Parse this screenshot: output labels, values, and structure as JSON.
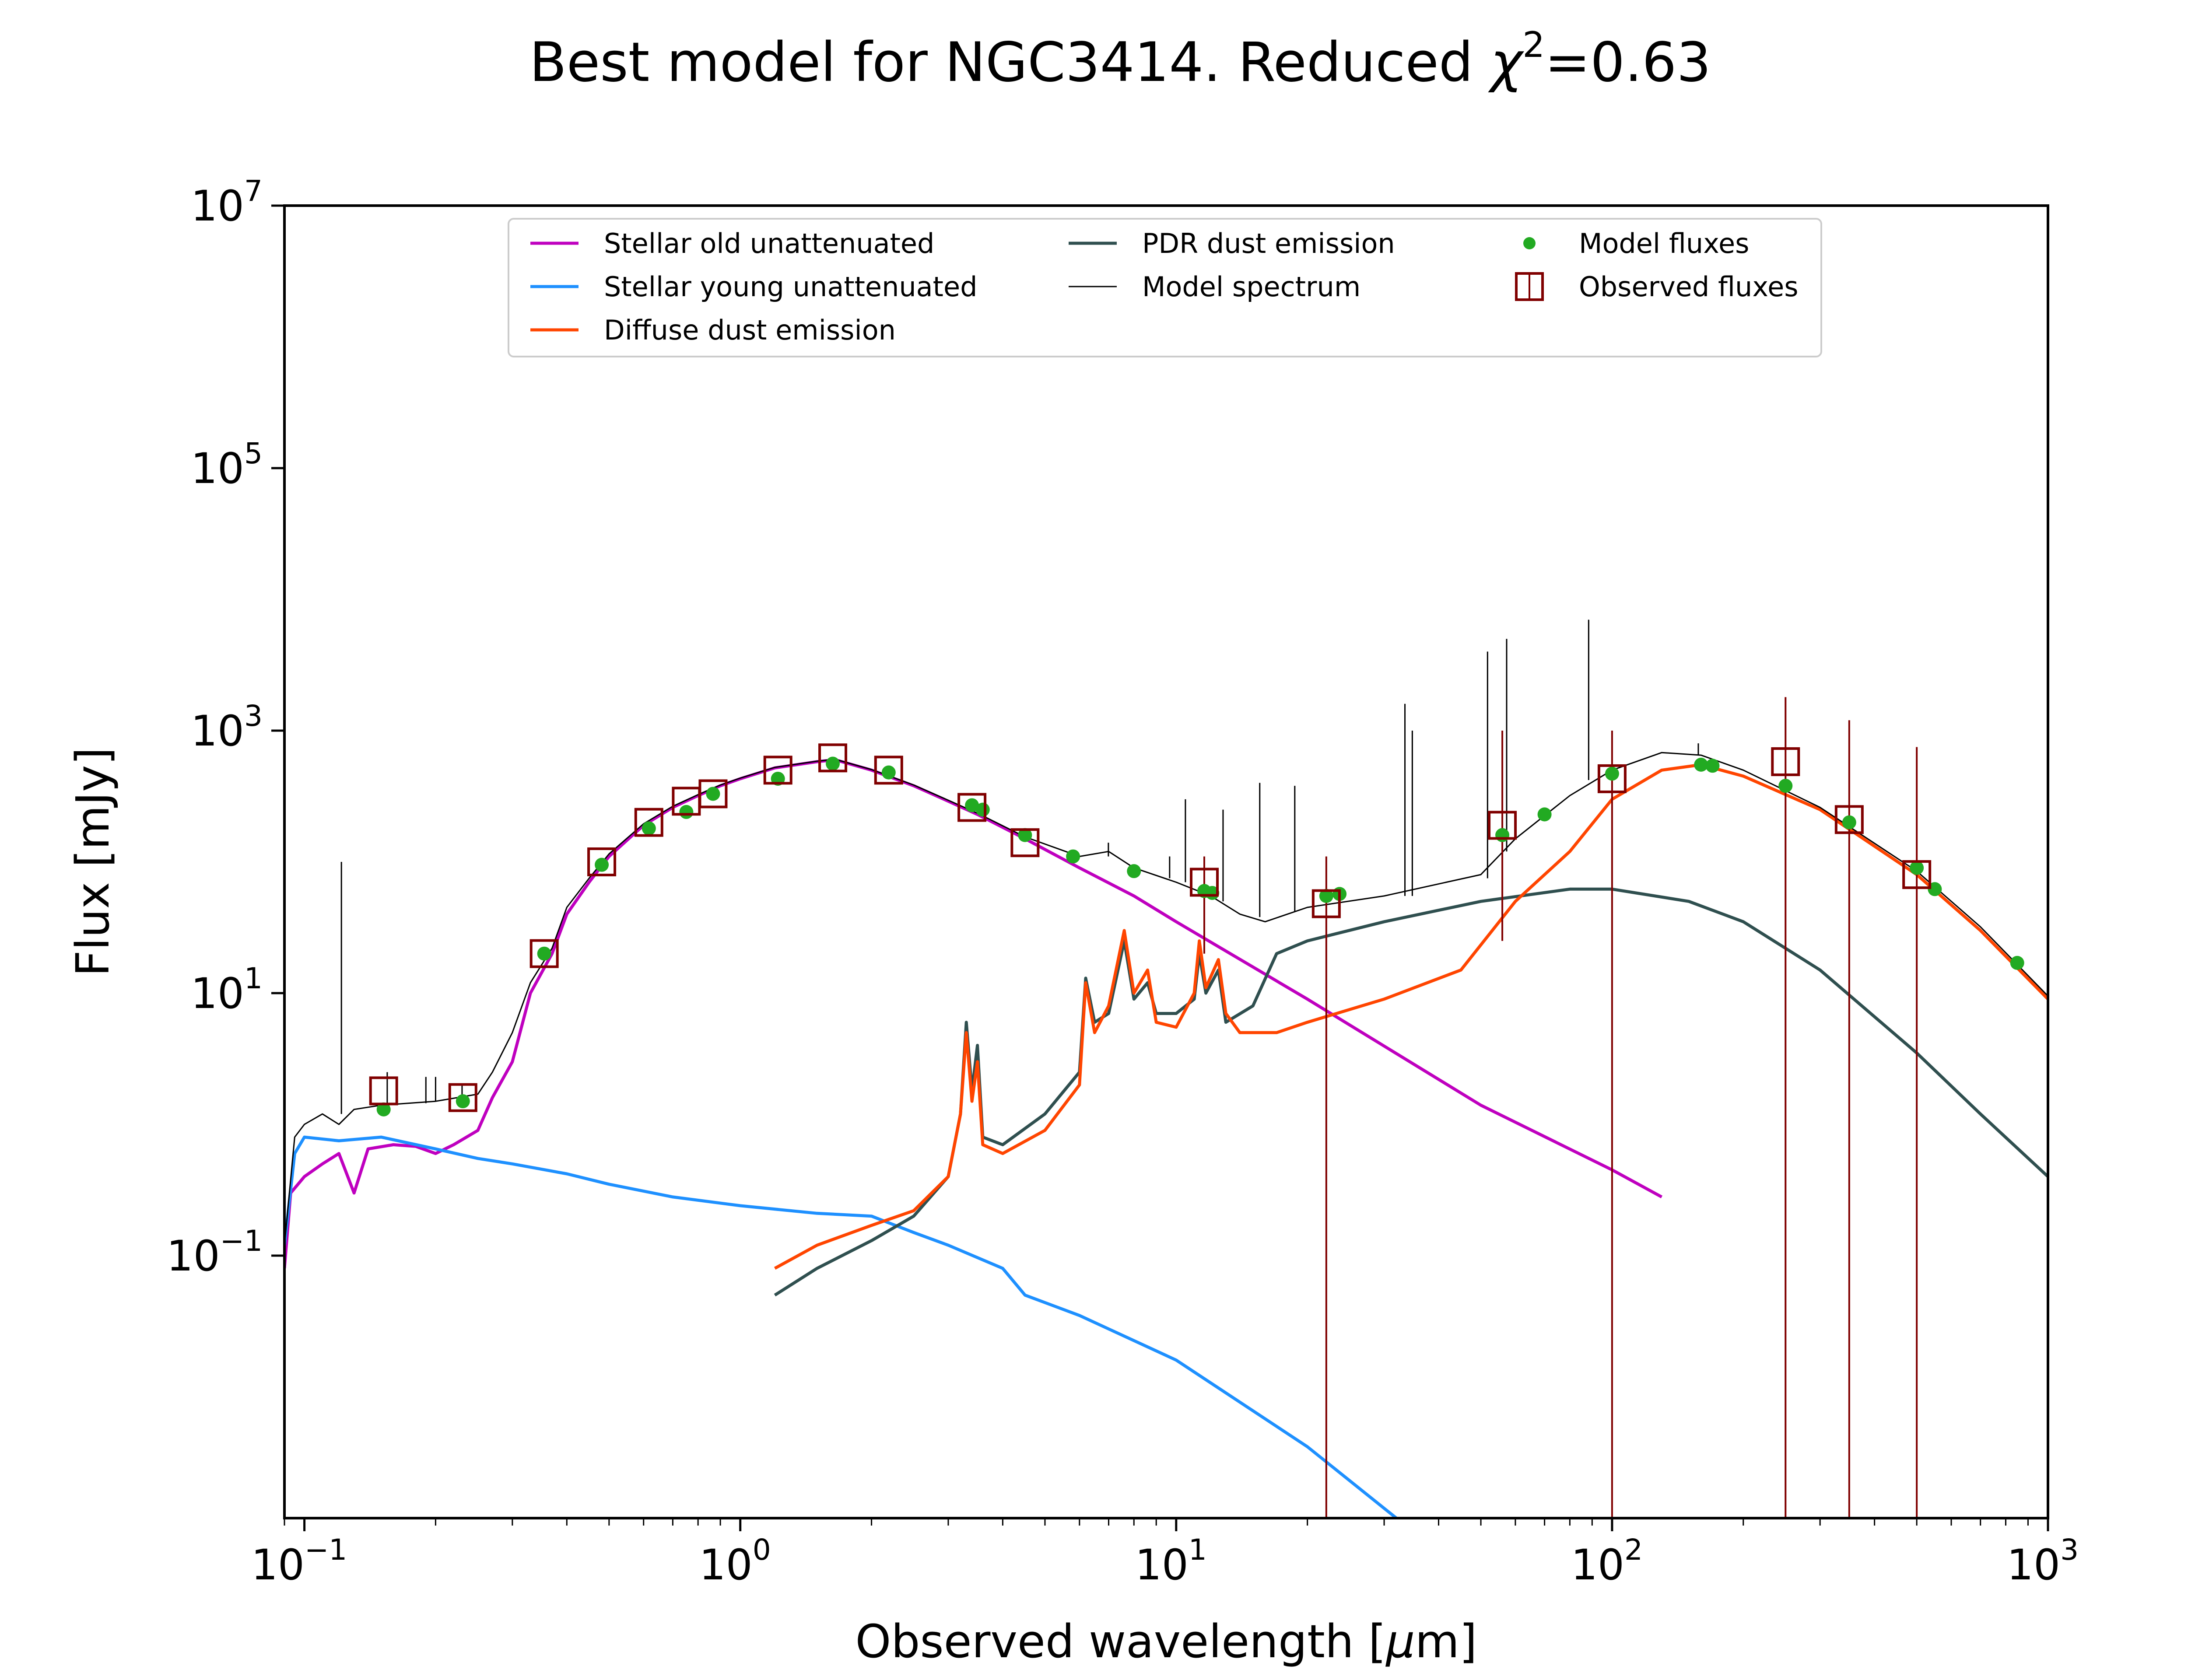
{
  "chart_data": {
    "type": "line",
    "title_prefix": "Best model for NGC3414. Reduced ",
    "title_symbol": "χ",
    "title_superscript": "2",
    "title_suffix": "=0.63",
    "xlabel_prefix": "Observed wavelength [",
    "xlabel_mu": "μ",
    "xlabel_suffix": "m]",
    "ylabel": "Flux [mJy]",
    "xscale": "log",
    "yscale": "log",
    "xlim": [
      0.09,
      1000
    ],
    "ylim": [
      0.001,
      10000000
    ],
    "x_ticks": [
      {
        "value": 0.1,
        "base": "10",
        "exp": "−1"
      },
      {
        "value": 1,
        "base": "10",
        "exp": "0"
      },
      {
        "value": 10,
        "base": "10",
        "exp": "1"
      },
      {
        "value": 100,
        "base": "10",
        "exp": "2"
      },
      {
        "value": 1000,
        "base": "10",
        "exp": "3"
      }
    ],
    "y_ticks": [
      {
        "value": 0.1,
        "base": "10",
        "exp": "−1"
      },
      {
        "value": 10,
        "base": "10",
        "exp": "1"
      },
      {
        "value": 1000,
        "base": "10",
        "exp": "3"
      },
      {
        "value": 100000,
        "base": "10",
        "exp": "5"
      },
      {
        "value": 10000000,
        "base": "10",
        "exp": "7"
      }
    ],
    "legend_position": "upper center",
    "legend": [
      {
        "label": "Stellar old unattenuated",
        "kind": "line",
        "color": "#bf00bf",
        "width": 7
      },
      {
        "label": "Stellar young unattenuated",
        "kind": "line",
        "color": "#1e90ff",
        "width": 7
      },
      {
        "label": "Diffuse dust emission",
        "kind": "line",
        "color": "#ff4500",
        "width": 7
      },
      {
        "label": "PDR dust emission",
        "kind": "line",
        "color": "#2f4f4f",
        "width": 7
      },
      {
        "label": "Model spectrum",
        "kind": "line",
        "color": "#000000",
        "width": 3
      },
      {
        "label": "Model fluxes",
        "kind": "dot",
        "color": "#22aa22"
      },
      {
        "label": "Observed fluxes",
        "kind": "square",
        "color": "#800000"
      }
    ],
    "series": [
      {
        "name": "Stellar old unattenuated",
        "color": "#bf00bf",
        "width": 7,
        "points": [
          [
            0.09,
            0.08
          ],
          [
            0.093,
            0.3
          ],
          [
            0.1,
            0.4
          ],
          [
            0.11,
            0.5
          ],
          [
            0.12,
            0.6
          ],
          [
            0.13,
            0.3
          ],
          [
            0.14,
            0.65
          ],
          [
            0.16,
            0.7
          ],
          [
            0.18,
            0.68
          ],
          [
            0.2,
            0.6
          ],
          [
            0.22,
            0.7
          ],
          [
            0.25,
            0.9
          ],
          [
            0.27,
            1.6
          ],
          [
            0.3,
            3
          ],
          [
            0.33,
            10
          ],
          [
            0.37,
            20
          ],
          [
            0.4,
            40
          ],
          [
            0.45,
            70
          ],
          [
            0.5,
            110
          ],
          [
            0.6,
            190
          ],
          [
            0.7,
            260
          ],
          [
            0.8,
            320
          ],
          [
            0.9,
            380
          ],
          [
            1.0,
            430
          ],
          [
            1.2,
            520
          ],
          [
            1.5,
            580
          ],
          [
            1.65,
            600
          ],
          [
            2.0,
            500
          ],
          [
            2.5,
            380
          ],
          [
            3.0,
            290
          ],
          [
            3.5,
            230
          ],
          [
            4.5,
            150
          ],
          [
            6.0,
            90
          ],
          [
            8.0,
            55
          ],
          [
            10,
            35
          ],
          [
            20,
            9
          ],
          [
            50,
            1.4
          ],
          [
            100,
            0.45
          ],
          [
            130,
            0.28
          ]
        ]
      },
      {
        "name": "Stellar young unattenuated",
        "color": "#1e90ff",
        "width": 7,
        "points": [
          [
            0.09,
            0.12
          ],
          [
            0.095,
            0.6
          ],
          [
            0.1,
            0.8
          ],
          [
            0.12,
            0.75
          ],
          [
            0.15,
            0.8
          ],
          [
            0.2,
            0.65
          ],
          [
            0.25,
            0.55
          ],
          [
            0.3,
            0.5
          ],
          [
            0.4,
            0.42
          ],
          [
            0.5,
            0.35
          ],
          [
            0.7,
            0.28
          ],
          [
            1.0,
            0.24
          ],
          [
            1.5,
            0.21
          ],
          [
            2.0,
            0.2
          ],
          [
            2.5,
            0.15
          ],
          [
            3.0,
            0.12
          ],
          [
            4.0,
            0.08
          ],
          [
            4.5,
            0.05
          ],
          [
            6.0,
            0.035
          ],
          [
            10,
            0.016
          ],
          [
            20,
            0.0035
          ],
          [
            32,
            0.001
          ]
        ]
      },
      {
        "name": "Diffuse dust emission",
        "color": "#ff4500",
        "width": 7,
        "points": [
          [
            1.2,
            0.08
          ],
          [
            1.5,
            0.12
          ],
          [
            2.0,
            0.17
          ],
          [
            2.5,
            0.22
          ],
          [
            3.0,
            0.4
          ],
          [
            3.2,
            1.2
          ],
          [
            3.3,
            5
          ],
          [
            3.4,
            1.5
          ],
          [
            3.5,
            3
          ],
          [
            3.6,
            0.7
          ],
          [
            4.0,
            0.6
          ],
          [
            5.0,
            0.9
          ],
          [
            6.0,
            2
          ],
          [
            6.2,
            12
          ],
          [
            6.5,
            5
          ],
          [
            7.0,
            8
          ],
          [
            7.6,
            30
          ],
          [
            8.0,
            10
          ],
          [
            8.6,
            15
          ],
          [
            9.0,
            6
          ],
          [
            10,
            5.5
          ],
          [
            11,
            10
          ],
          [
            11.3,
            25
          ],
          [
            11.7,
            11
          ],
          [
            12.5,
            18
          ],
          [
            13,
            7
          ],
          [
            14,
            5
          ],
          [
            17,
            5
          ],
          [
            20,
            6
          ],
          [
            30,
            9
          ],
          [
            45,
            15
          ],
          [
            60,
            50
          ],
          [
            80,
            120
          ],
          [
            100,
            300
          ],
          [
            130,
            500
          ],
          [
            160,
            550
          ],
          [
            200,
            450
          ],
          [
            300,
            250
          ],
          [
            500,
            80
          ],
          [
            700,
            30
          ],
          [
            1000,
            9
          ]
        ]
      },
      {
        "name": "PDR dust emission",
        "color": "#2f4f4f",
        "width": 7,
        "points": [
          [
            1.2,
            0.05
          ],
          [
            1.5,
            0.08
          ],
          [
            2.0,
            0.13
          ],
          [
            2.5,
            0.2
          ],
          [
            3.0,
            0.4
          ],
          [
            3.2,
            1.2
          ],
          [
            3.3,
            6
          ],
          [
            3.4,
            1.8
          ],
          [
            3.5,
            4
          ],
          [
            3.6,
            0.8
          ],
          [
            4.0,
            0.7
          ],
          [
            5.0,
            1.2
          ],
          [
            6.0,
            2.5
          ],
          [
            6.2,
            13
          ],
          [
            6.5,
            6
          ],
          [
            7.0,
            7
          ],
          [
            7.6,
            25
          ],
          [
            8.0,
            9
          ],
          [
            8.6,
            12
          ],
          [
            9.0,
            7
          ],
          [
            10,
            7
          ],
          [
            11,
            9
          ],
          [
            11.3,
            20
          ],
          [
            11.7,
            10
          ],
          [
            12.5,
            15
          ],
          [
            13,
            6
          ],
          [
            15,
            8
          ],
          [
            17,
            20
          ],
          [
            20,
            25
          ],
          [
            30,
            35
          ],
          [
            50,
            50
          ],
          [
            80,
            62
          ],
          [
            100,
            62
          ],
          [
            150,
            50
          ],
          [
            200,
            35
          ],
          [
            300,
            15
          ],
          [
            500,
            3.5
          ],
          [
            700,
            1.2
          ],
          [
            1000,
            0.4
          ]
        ]
      },
      {
        "name": "Model spectrum",
        "color": "#000000",
        "width": 3,
        "points": [
          [
            0.09,
            0.12
          ],
          [
            0.095,
            0.8
          ],
          [
            0.1,
            1.0
          ],
          [
            0.11,
            1.2
          ],
          [
            0.12,
            1.0
          ],
          [
            0.13,
            1.3
          ],
          [
            0.15,
            1.4
          ],
          [
            0.2,
            1.5
          ],
          [
            0.25,
            1.7
          ],
          [
            0.27,
            2.5
          ],
          [
            0.3,
            5
          ],
          [
            0.33,
            12
          ],
          [
            0.37,
            22
          ],
          [
            0.4,
            45
          ],
          [
            0.45,
            75
          ],
          [
            0.5,
            115
          ],
          [
            0.6,
            195
          ],
          [
            0.7,
            265
          ],
          [
            0.8,
            325
          ],
          [
            0.9,
            385
          ],
          [
            1.0,
            435
          ],
          [
            1.2,
            525
          ],
          [
            1.5,
            585
          ],
          [
            1.65,
            605
          ],
          [
            2.0,
            505
          ],
          [
            2.5,
            385
          ],
          [
            3.0,
            295
          ],
          [
            3.5,
            235
          ],
          [
            4.5,
            155
          ],
          [
            6.0,
            110
          ],
          [
            7.0,
            120
          ],
          [
            8.0,
            90
          ],
          [
            10,
            70
          ],
          [
            12,
            55
          ],
          [
            14,
            40
          ],
          [
            16,
            35
          ],
          [
            20,
            45
          ],
          [
            30,
            55
          ],
          [
            50,
            80
          ],
          [
            60,
            150
          ],
          [
            80,
            320
          ],
          [
            100,
            500
          ],
          [
            130,
            680
          ],
          [
            160,
            650
          ],
          [
            200,
            500
          ],
          [
            300,
            260
          ],
          [
            500,
            85
          ],
          [
            700,
            32
          ],
          [
            1000,
            9.5
          ]
        ]
      }
    ],
    "emission_lines": [
      {
        "x": 0.1216,
        "y_base": 1.2,
        "y_top": 100
      },
      {
        "x": 0.1549,
        "y_base": 1.4,
        "y_top": 2.5
      },
      {
        "x": 0.19,
        "y_base": 1.45,
        "y_top": 2.3
      },
      {
        "x": 0.2,
        "y_base": 1.5,
        "y_top": 2.3
      },
      {
        "x": 0.23,
        "y_base": 1.6,
        "y_top": 2.0
      },
      {
        "x": 6.99,
        "y_base": 110,
        "y_top": 140
      },
      {
        "x": 9.66,
        "y_base": 75,
        "y_top": 110
      },
      {
        "x": 10.5,
        "y_base": 70,
        "y_top": 300
      },
      {
        "x": 12.81,
        "y_base": 50,
        "y_top": 250
      },
      {
        "x": 15.55,
        "y_base": 38,
        "y_top": 400
      },
      {
        "x": 18.71,
        "y_base": 42,
        "y_top": 380
      },
      {
        "x": 33.48,
        "y_base": 55,
        "y_top": 1600
      },
      {
        "x": 34.81,
        "y_base": 55,
        "y_top": 1000
      },
      {
        "x": 51.8,
        "y_base": 75,
        "y_top": 4000
      },
      {
        "x": 57.3,
        "y_base": 120,
        "y_top": 5000
      },
      {
        "x": 88.36,
        "y_base": 420,
        "y_top": 7000
      },
      {
        "x": 157.7,
        "y_base": 650,
        "y_top": 800
      }
    ],
    "model_fluxes": [
      [
        0.152,
        1.3
      ],
      [
        0.231,
        1.5
      ],
      [
        0.355,
        20
      ],
      [
        0.481,
        95
      ],
      [
        0.617,
        180
      ],
      [
        0.752,
        240
      ],
      [
        0.866,
        330
      ],
      [
        1.22,
        430
      ],
      [
        1.63,
        560
      ],
      [
        2.19,
        480
      ],
      [
        3.4,
        270
      ],
      [
        3.6,
        250
      ],
      [
        4.5,
        160
      ],
      [
        5.8,
        110
      ],
      [
        8.0,
        85
      ],
      [
        11.6,
        60
      ],
      [
        12.1,
        58
      ],
      [
        22.1,
        55
      ],
      [
        23.7,
        57
      ],
      [
        56,
        160
      ],
      [
        70,
        230
      ],
      [
        100,
        470
      ],
      [
        160,
        550
      ],
      [
        170,
        540
      ],
      [
        250,
        380
      ],
      [
        350,
        200
      ],
      [
        500,
        90
      ],
      [
        550,
        62
      ],
      [
        850,
        17
      ]
    ],
    "observed_fluxes": [
      [
        0.152,
        1.8,
        null
      ],
      [
        0.231,
        1.6,
        null
      ],
      [
        0.355,
        20,
        null
      ],
      [
        0.481,
        100,
        null
      ],
      [
        0.617,
        200,
        null
      ],
      [
        0.752,
        290,
        null
      ],
      [
        0.866,
        330,
        null
      ],
      [
        1.22,
        500,
        null
      ],
      [
        1.63,
        620,
        null
      ],
      [
        2.19,
        500,
        null
      ],
      [
        3.4,
        260,
        null
      ],
      [
        4.5,
        140,
        null
      ],
      [
        11.6,
        70,
        [
          20,
          110
        ]
      ],
      [
        22.1,
        48,
        [
          0.001,
          110
        ]
      ],
      [
        56,
        190,
        [
          25,
          1000
        ]
      ],
      [
        100,
        430,
        [
          0.001,
          1000
        ]
      ],
      [
        250,
        580,
        [
          0.001,
          1800
        ]
      ],
      [
        350,
        210,
        [
          0.001,
          1200
        ]
      ],
      [
        500,
        80,
        [
          0.001,
          750
        ]
      ]
    ]
  }
}
